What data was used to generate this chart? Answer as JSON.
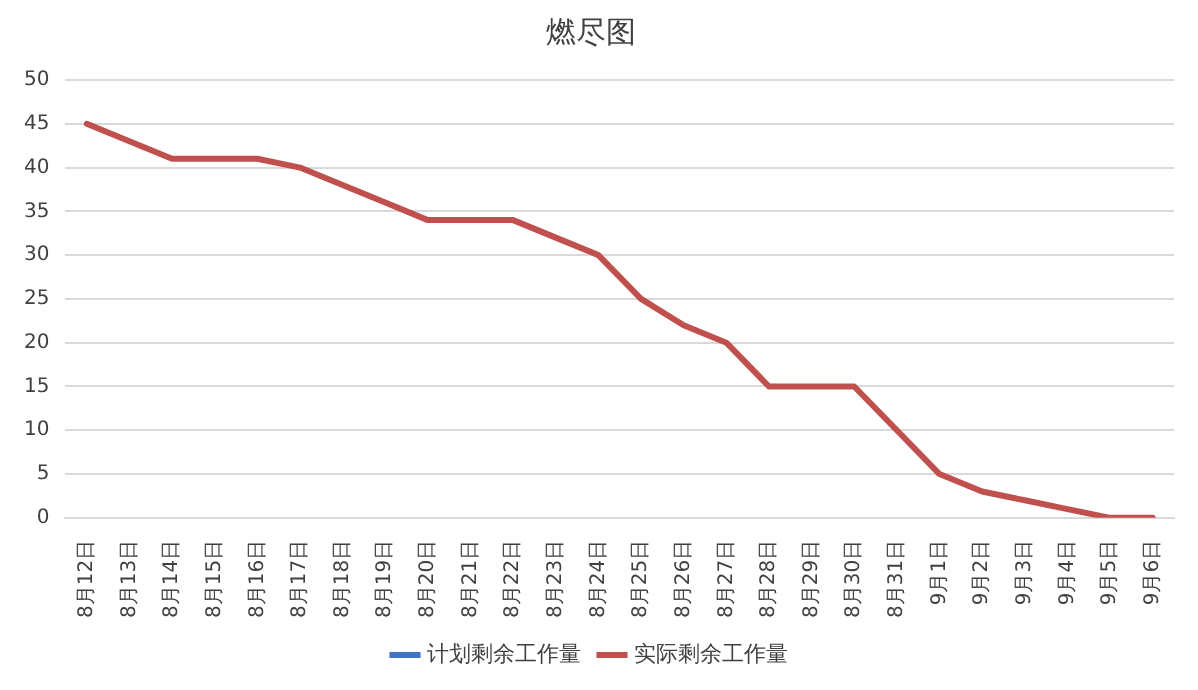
{
  "chart_data": {
    "type": "line",
    "title": "燃尽图",
    "categories": [
      "8月12日",
      "8月13日",
      "8月14日",
      "8月15日",
      "8月16日",
      "8月17日",
      "8月18日",
      "8月19日",
      "8月20日",
      "8月21日",
      "8月22日",
      "8月23日",
      "8月24日",
      "8月25日",
      "8月26日",
      "8月27日",
      "8月28日",
      "8月29日",
      "8月30日",
      "8月31日",
      "9月1日",
      "9月2日",
      "9月3日",
      "9月4日",
      "9月5日",
      "9月6日"
    ],
    "series": [
      {
        "name": "计划剩余工作量",
        "color": "#4472c4",
        "values": [
          null,
          null,
          null,
          null,
          null,
          null,
          null,
          null,
          null,
          null,
          null,
          null,
          null,
          null,
          null,
          null,
          null,
          null,
          null,
          null,
          null,
          null,
          null,
          null,
          null,
          null
        ]
      },
      {
        "name": "实际剩余工作量",
        "color": "#c0504d",
        "values": [
          45,
          43,
          41,
          41,
          41,
          40,
          38,
          36,
          34,
          34,
          34,
          32,
          30,
          25,
          22,
          20,
          15,
          15,
          15,
          10,
          5,
          3,
          2,
          1,
          0,
          0
        ]
      }
    ],
    "ylim": [
      0,
      50
    ],
    "yticks": [
      0,
      5,
      10,
      15,
      20,
      25,
      30,
      35,
      40,
      45,
      50
    ],
    "grid": "y",
    "legend": "bottom",
    "marker": "none",
    "line_style": "solid"
  }
}
